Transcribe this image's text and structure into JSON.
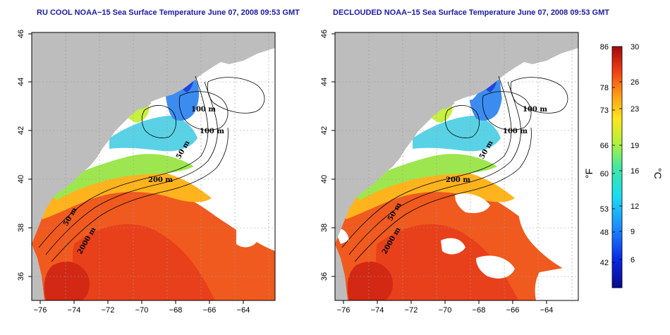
{
  "panels": [
    {
      "title": "RU COOL NOAA−15 Sea Surface Temperature June 07, 2008 09:53 GMT",
      "variant": "cool"
    },
    {
      "title": "DECLOUDED NOAA−15 Sea Surface Temperature June 07, 2008 09:53 GMT",
      "variant": "declouded"
    }
  ],
  "axes": {
    "lon_ticks": [
      "−76",
      "−74",
      "−72",
      "−70",
      "−68",
      "−66",
      "−64"
    ],
    "lat_ticks": [
      "36",
      "38",
      "40",
      "42",
      "44",
      "46"
    ]
  },
  "contour_labels": [
    "100 m",
    "100 m",
    "50 m",
    "200 m",
    "50 m",
    "2000 m"
  ],
  "colorbar": {
    "fahrenheit_ticks": [
      "86",
      "78",
      "73",
      "66",
      "60",
      "53",
      "48",
      "42"
    ],
    "celsius_ticks": [
      "30",
      "26",
      "23",
      "19",
      "16",
      "12",
      "9",
      "6"
    ],
    "fahrenheit_unit": "°F",
    "celsius_unit": "°C"
  },
  "colors": {
    "land": "#bdbdbd",
    "cloud": "#ffffff",
    "title": "#1a1aa6",
    "warm": "#e8461e",
    "cold": "#1e3cdc"
  }
}
